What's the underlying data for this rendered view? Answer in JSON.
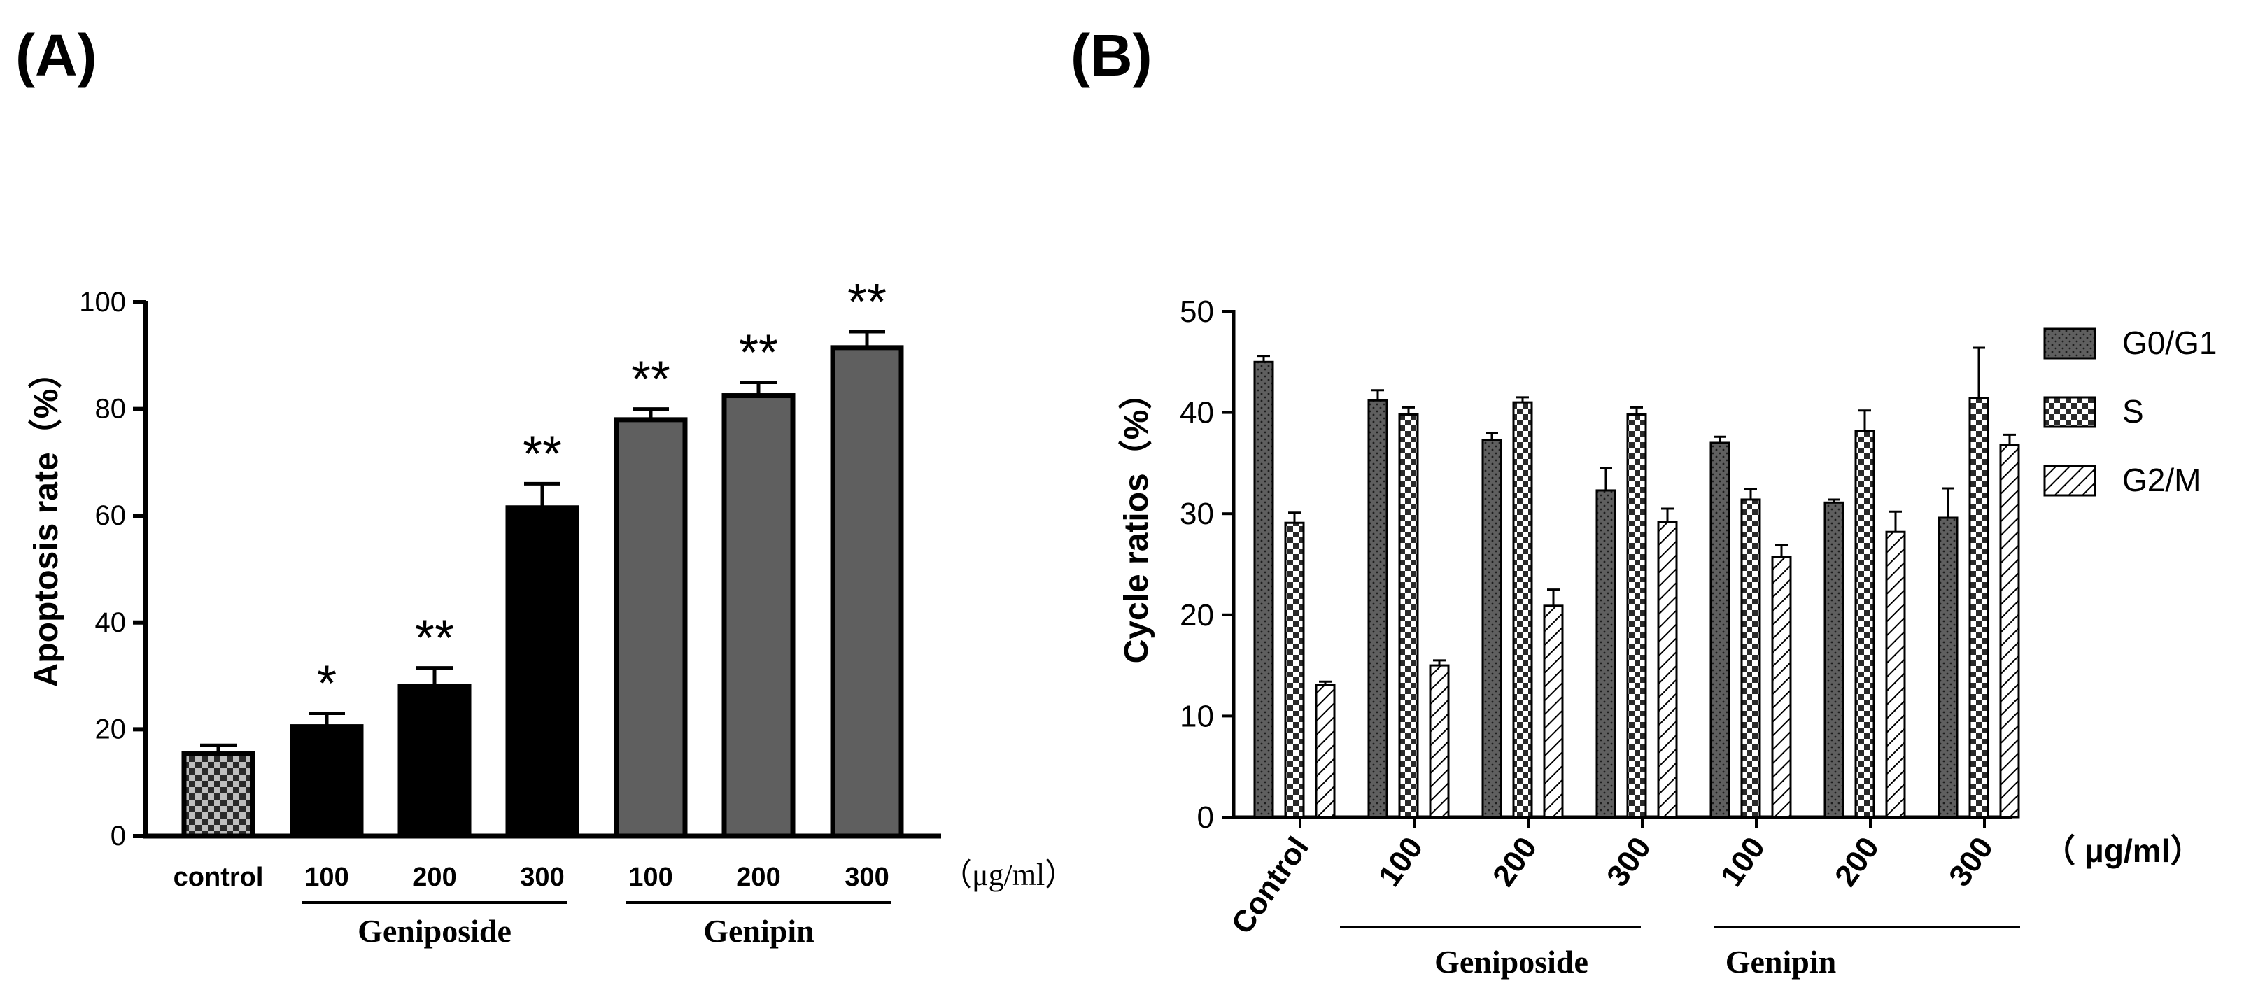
{
  "chart_data": [
    {
      "panel": "(A)",
      "type": "bar",
      "ylabel": "Apoptosis rate（%）",
      "ylim": [
        0,
        100
      ],
      "yticks": [
        "0",
        "20",
        "40",
        "60",
        "80",
        "100"
      ],
      "unit": "（μg/ml）",
      "categories": [
        "control",
        "100",
        "200",
        "300",
        "100",
        "200",
        "300"
      ],
      "values": [
        15.5,
        20.5,
        28,
        61.5,
        78,
        82.5,
        91.5
      ],
      "errors": [
        1.5,
        2.5,
        3.5,
        4.5,
        2,
        2.5,
        3
      ],
      "significance": [
        "",
        "*",
        "**",
        "**",
        "**",
        "**",
        "**"
      ],
      "fill_types": [
        "checker",
        "black",
        "black",
        "black",
        "gray",
        "gray",
        "gray"
      ],
      "groups": [
        {
          "label": "Geniposide",
          "from": 1,
          "to": 3
        },
        {
          "label": "Genipin",
          "from": 4,
          "to": 6
        }
      ],
      "colors": {
        "black": "#000000",
        "gray": "#5f5f5f"
      }
    },
    {
      "panel": "(B)",
      "type": "bar",
      "ylabel": "Cycle ratios（%）",
      "ylim": [
        0,
        50
      ],
      "yticks": [
        "0",
        "10",
        "20",
        "30",
        "40",
        "50"
      ],
      "unit": "（ μg/ml）",
      "categories": [
        "Control",
        "100",
        "200",
        "300",
        "100",
        "200",
        "300"
      ],
      "series": [
        {
          "name": "G0/G1",
          "pattern": "dots",
          "values": [
            45,
            41.2,
            37.3,
            32.3,
            37,
            31.1,
            29.6
          ],
          "errors": [
            0.6,
            1,
            0.7,
            2.2,
            0.6,
            0.3,
            2.9
          ]
        },
        {
          "name": "S",
          "pattern": "checker",
          "values": [
            29.1,
            39.8,
            41,
            39.8,
            31.4,
            38.2,
            41.4
          ],
          "errors": [
            1,
            0.7,
            0.5,
            0.7,
            1,
            2,
            5
          ]
        },
        {
          "name": "G2/M",
          "pattern": "hatch",
          "values": [
            13.1,
            15,
            20.9,
            29.2,
            25.7,
            28.2,
            36.8
          ],
          "errors": [
            0.3,
            0.5,
            1.6,
            1.3,
            1.2,
            2,
            1
          ]
        }
      ],
      "groups": [
        {
          "label": "Geniposide",
          "from": 1,
          "to": 3
        },
        {
          "label": "Genipin",
          "from": 4,
          "to": 6
        }
      ],
      "colors": {
        "dots_fill": "#5f5f5f"
      }
    }
  ]
}
